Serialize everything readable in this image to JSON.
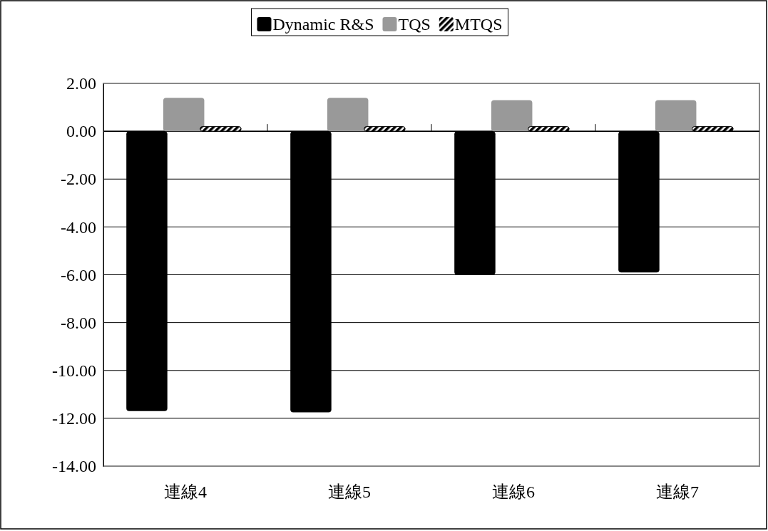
{
  "chart_data": {
    "type": "bar",
    "categories": [
      "連線4",
      "連線5",
      "連線6",
      "連線7"
    ],
    "series": [
      {
        "name": "Dynamic R&S",
        "color": "#000000",
        "values": [
          -11.7,
          -11.75,
          -6.0,
          -5.9
        ]
      },
      {
        "name": "TQS",
        "color": "#999999",
        "values": [
          1.4,
          1.4,
          1.3,
          1.3
        ]
      },
      {
        "name": "MTQS",
        "color": "#000000",
        "values": [
          0.2,
          0.2,
          0.2,
          0.2
        ]
      }
    ],
    "ylim": [
      -14,
      2
    ],
    "yticks": [
      {
        "value": 2,
        "label": "2.00"
      },
      {
        "value": 0,
        "label": "0.00"
      },
      {
        "value": -2,
        "label": "-2.00"
      },
      {
        "value": -4,
        "label": "-4.00"
      },
      {
        "value": -6,
        "label": "-6.00"
      },
      {
        "value": -8,
        "label": "-8.00"
      },
      {
        "value": -10,
        "label": "-10.00"
      },
      {
        "value": -12,
        "label": "-12.00"
      },
      {
        "value": -14,
        "label": "-14.00"
      }
    ],
    "grid": "y",
    "legend": "top"
  }
}
